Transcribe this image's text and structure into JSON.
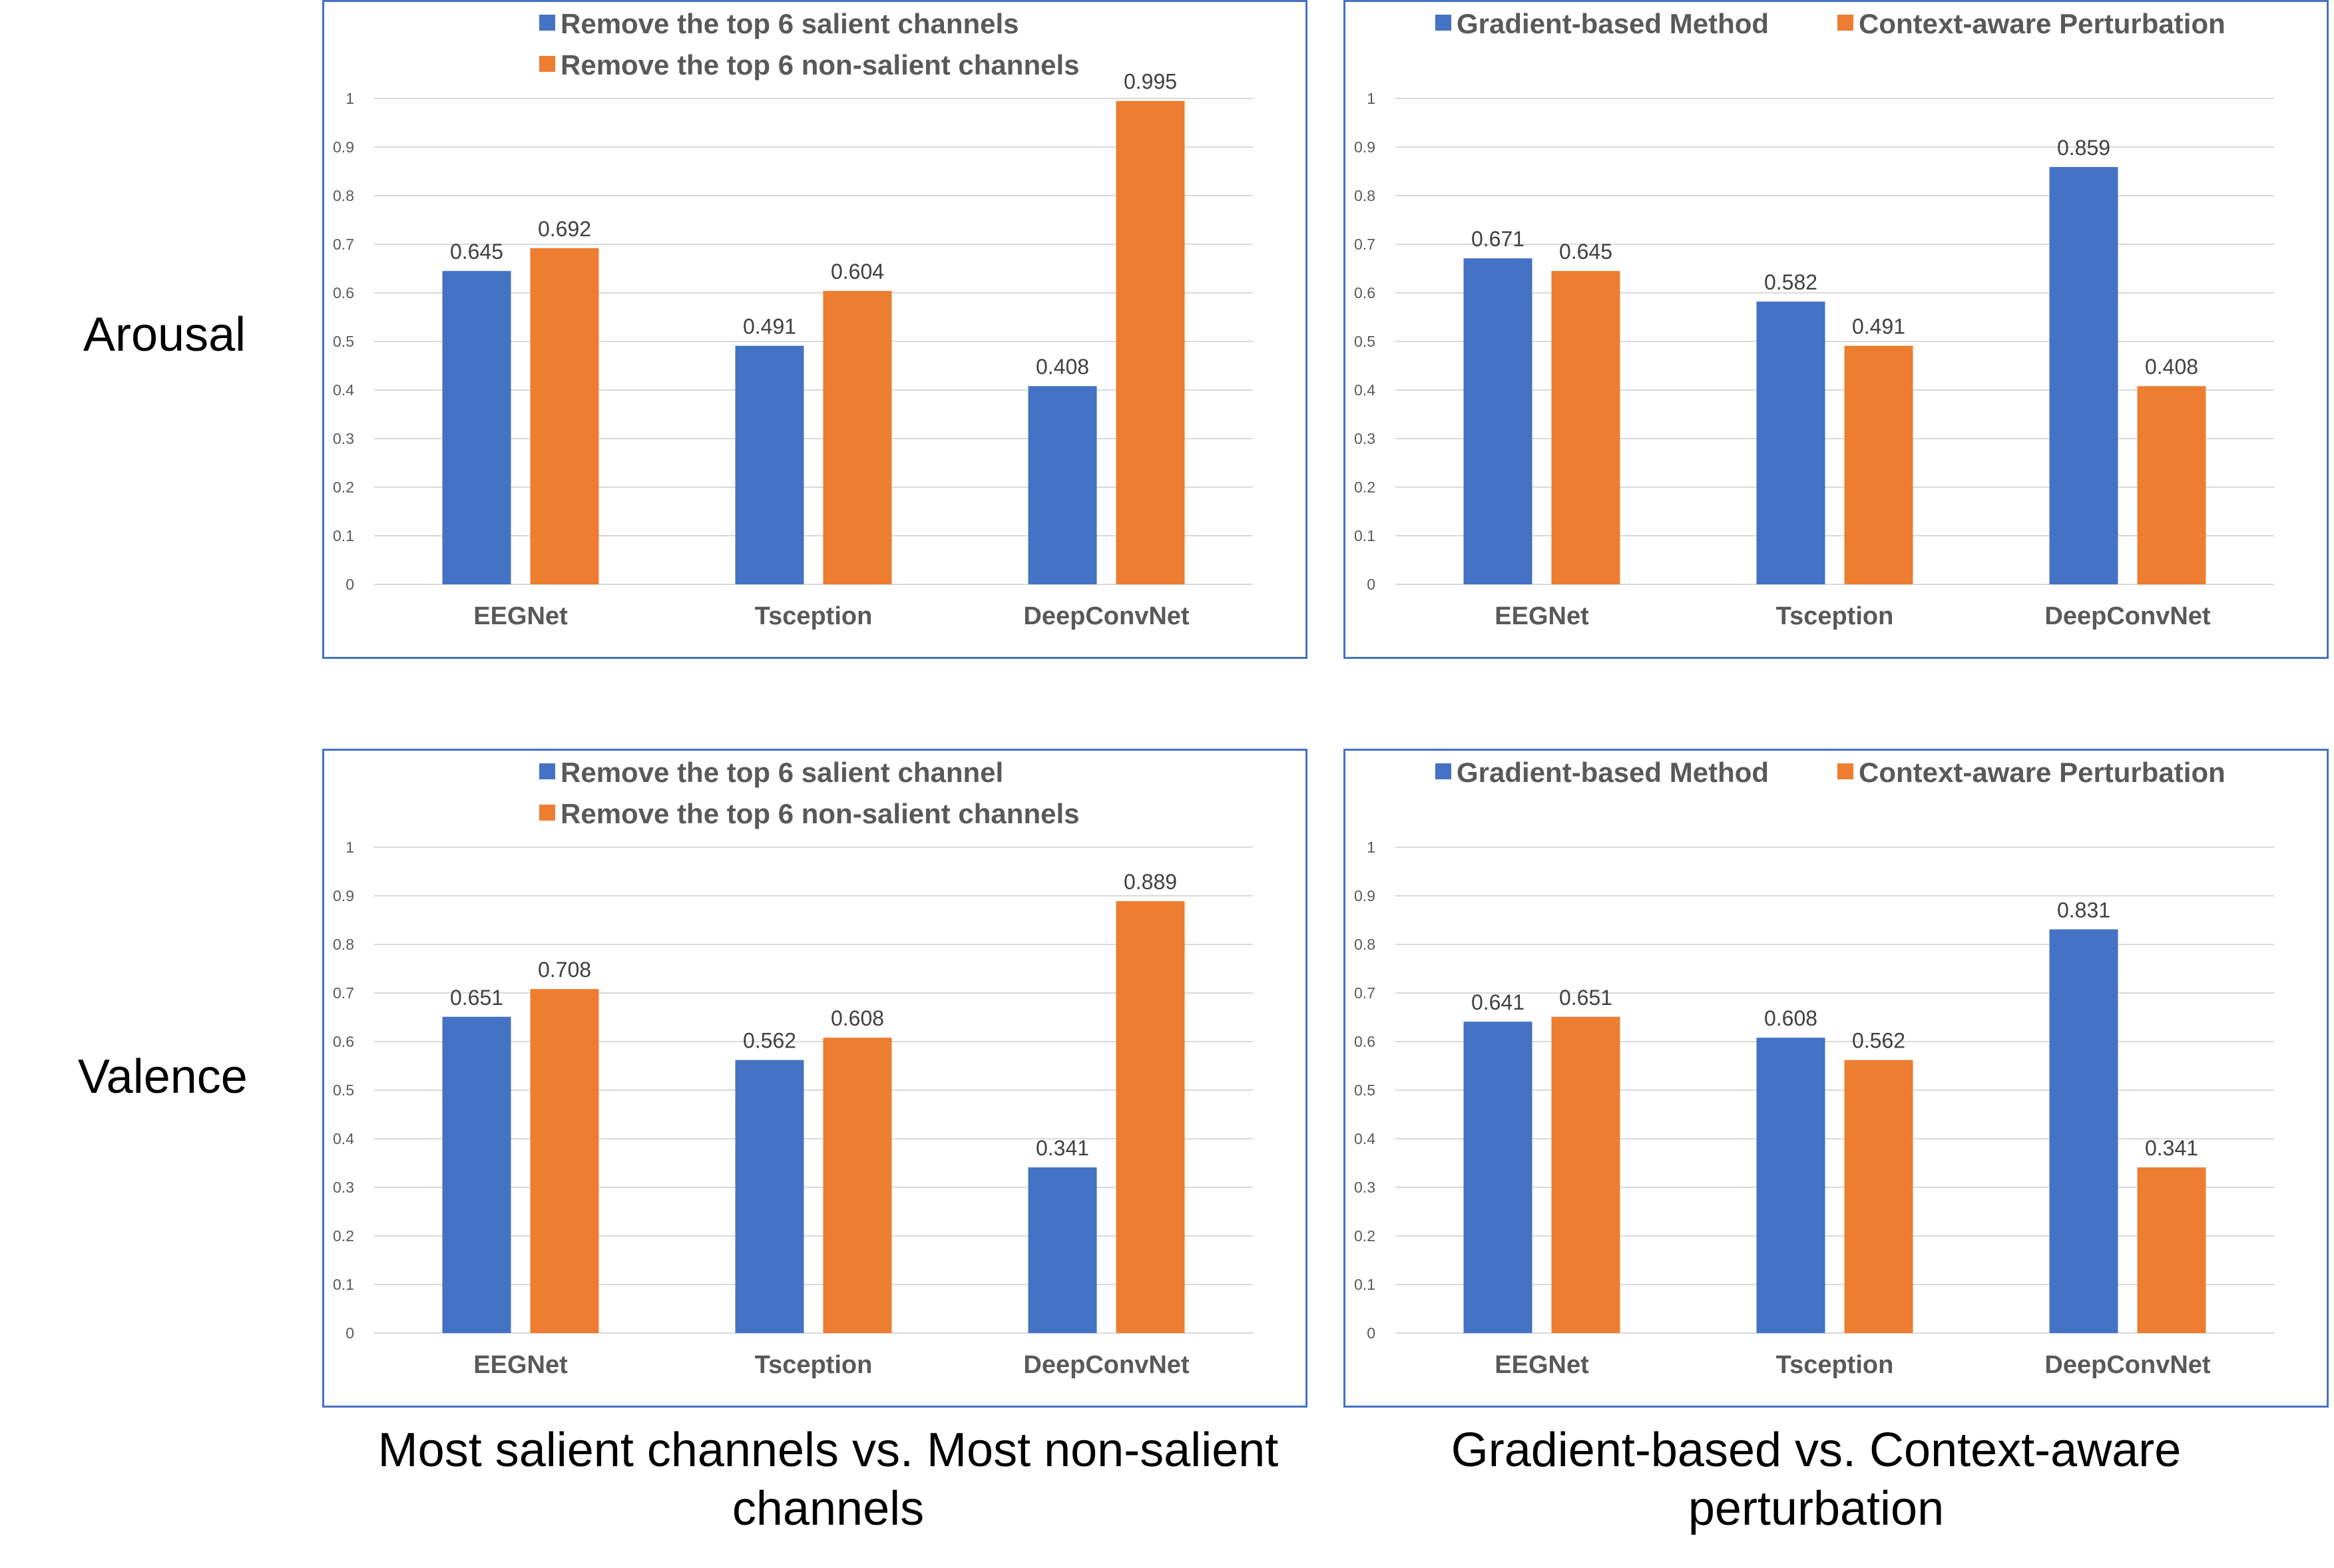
{
  "row_labels": [
    "Arousal",
    "Valence"
  ],
  "captions": {
    "left": [
      "Most salient channels vs. Most non-salient",
      "channels"
    ],
    "right": [
      "Gradient-based vs. Context-aware",
      "perturbation"
    ]
  },
  "colors": {
    "series1": "#4472c4",
    "series2": "#ed7d31"
  },
  "chart_data": [
    {
      "type": "bar",
      "row": "Arousal",
      "categories": [
        "EEGNet",
        "Tsception",
        "DeepConvNet"
      ],
      "series": [
        {
          "name": "Remove the top 6 salient channels",
          "values": [
            0.645,
            0.491,
            0.408
          ],
          "labels": [
            "0.645",
            "0.491",
            "0.408"
          ]
        },
        {
          "name": "Remove the top 6 non-salient channels",
          "values": [
            0.692,
            0.604,
            0.995
          ],
          "labels": [
            "0.692",
            "0.604",
            "0.995"
          ]
        }
      ],
      "legend_position": "top-stacked",
      "ylim": [
        0,
        1
      ],
      "yticks": [
        "0",
        "0.1",
        "0.2",
        "0.3",
        "0.4",
        "0.5",
        "0.6",
        "0.7",
        "0.8",
        "0.9",
        "1"
      ],
      "grid": true
    },
    {
      "type": "bar",
      "row": "Arousal",
      "categories": [
        "EEGNet",
        "Tsception",
        "DeepConvNet"
      ],
      "series": [
        {
          "name": "Gradient-based Method",
          "values": [
            0.671,
            0.582,
            0.859
          ],
          "labels": [
            "0.671",
            "0.582",
            "0.859"
          ]
        },
        {
          "name": "Context-aware Perturbation",
          "values": [
            0.645,
            0.491,
            0.408
          ],
          "labels": [
            "0.645",
            "0.491",
            "0.408"
          ]
        }
      ],
      "legend_position": "top-inline",
      "ylim": [
        0,
        1
      ],
      "yticks": [
        "0",
        "0.1",
        "0.2",
        "0.3",
        "0.4",
        "0.5",
        "0.6",
        "0.7",
        "0.8",
        "0.9",
        "1"
      ],
      "grid": true
    },
    {
      "type": "bar",
      "row": "Valence",
      "categories": [
        "EEGNet",
        "Tsception",
        "DeepConvNet"
      ],
      "series": [
        {
          "name": "Remove the top 6 salient channel",
          "values": [
            0.651,
            0.562,
            0.341
          ],
          "labels": [
            "0.651",
            "0.562",
            "0.341"
          ]
        },
        {
          "name": "Remove the top 6 non-salient channels",
          "values": [
            0.708,
            0.608,
            0.889
          ],
          "labels": [
            "0.708",
            "0.608",
            "0.889"
          ]
        }
      ],
      "legend_position": "top-stacked",
      "ylim": [
        0,
        1
      ],
      "yticks": [
        "0",
        "0.1",
        "0.2",
        "0.3",
        "0.4",
        "0.5",
        "0.6",
        "0.7",
        "0.8",
        "0.9",
        "1"
      ],
      "grid": true
    },
    {
      "type": "bar",
      "row": "Valence",
      "categories": [
        "EEGNet",
        "Tsception",
        "DeepConvNet"
      ],
      "series": [
        {
          "name": "Gradient-based Method",
          "values": [
            0.641,
            0.608,
            0.831
          ],
          "labels": [
            "0.641",
            "0.608",
            "0.831"
          ]
        },
        {
          "name": "Context-aware Perturbation",
          "values": [
            0.651,
            0.562,
            0.341
          ],
          "labels": [
            "0.651",
            "0.562",
            "0.341"
          ]
        }
      ],
      "legend_position": "top-inline",
      "ylim": [
        0,
        1
      ],
      "yticks": [
        "0",
        "0.1",
        "0.2",
        "0.3",
        "0.4",
        "0.5",
        "0.6",
        "0.7",
        "0.8",
        "0.9",
        "1"
      ],
      "grid": true
    }
  ]
}
